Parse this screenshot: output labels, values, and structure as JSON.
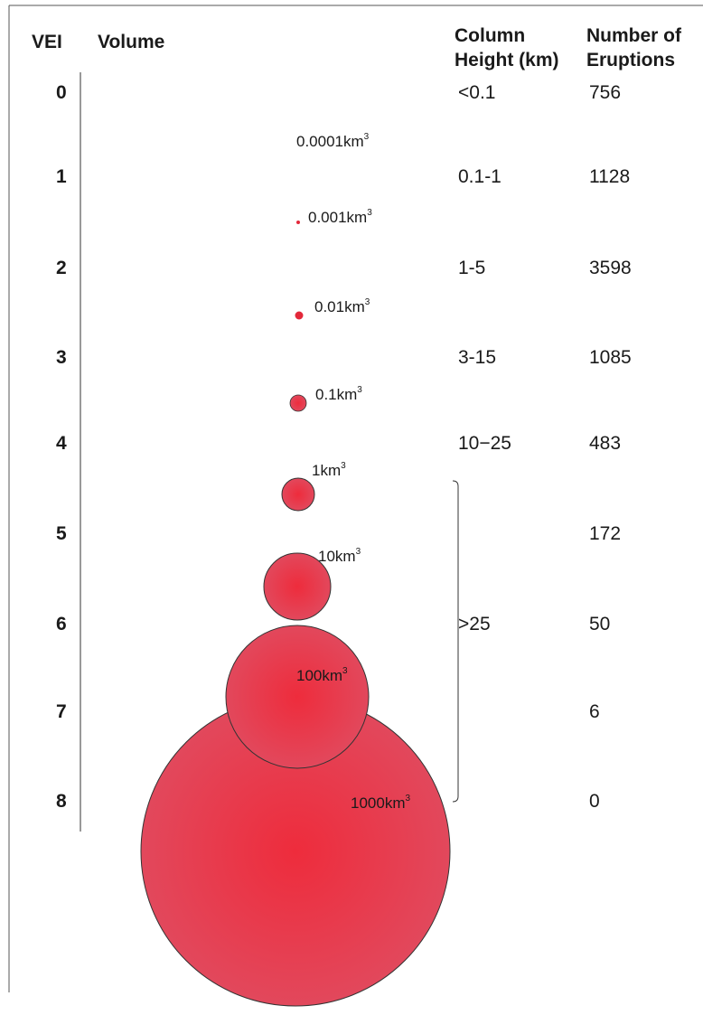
{
  "headers": {
    "vei": "VEI",
    "volume": "Volume",
    "column_line1": "Column",
    "column_line2": "Height (km)",
    "eruptions_line1": "Number of",
    "eruptions_line2": "Eruptions"
  },
  "rows": [
    {
      "vei": "0",
      "height": "<0.1",
      "eruptions": "756"
    },
    {
      "vei": "1",
      "height": "0.1-1",
      "eruptions": "1128"
    },
    {
      "vei": "2",
      "height": "1-5",
      "eruptions": "3598"
    },
    {
      "vei": "3",
      "height": "3-15",
      "eruptions": "1085"
    },
    {
      "vei": "4",
      "height": "10−25",
      "eruptions": "483"
    },
    {
      "vei": "5",
      "height": "",
      "eruptions": "172"
    },
    {
      "vei": "6",
      "height": "",
      "eruptions": "50"
    },
    {
      "vei": "7",
      "height": "",
      "eruptions": "6"
    },
    {
      "vei": "8",
      "height": "",
      "eruptions": "0"
    }
  ],
  "bracket_label": ">25",
  "volumes": [
    {
      "value": "0.0001km",
      "unit_exp": "3"
    },
    {
      "value": "0.001km",
      "unit_exp": "3"
    },
    {
      "value": "0.01km",
      "unit_exp": "3"
    },
    {
      "value": "0.1km",
      "unit_exp": "3"
    },
    {
      "value": "1km",
      "unit_exp": "3"
    },
    {
      "value": "10km",
      "unit_exp": "3"
    },
    {
      "value": "100km",
      "unit_exp": "3"
    },
    {
      "value": "1000km",
      "unit_exp": "3"
    }
  ],
  "colors": {
    "circle_center": "#ee2c3c",
    "circle_edge": "#e2485c",
    "stroke": "#333333"
  }
}
